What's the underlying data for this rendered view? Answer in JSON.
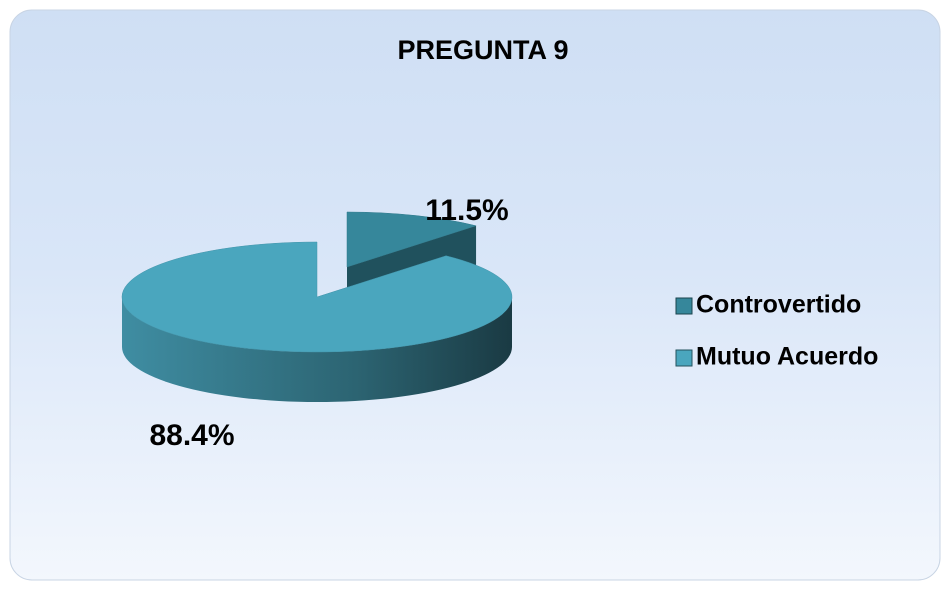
{
  "chart_data": {
    "type": "pie3d",
    "title": "PREGUNTA 9",
    "categories": [
      "Controvertido",
      "Mutuo Acuerdo"
    ],
    "values": [
      11.5,
      88.4
    ],
    "value_labels": [
      "11.5%",
      "88.4%"
    ],
    "colors": [
      "#36879b",
      "#4aa6be"
    ],
    "legend": "right"
  }
}
